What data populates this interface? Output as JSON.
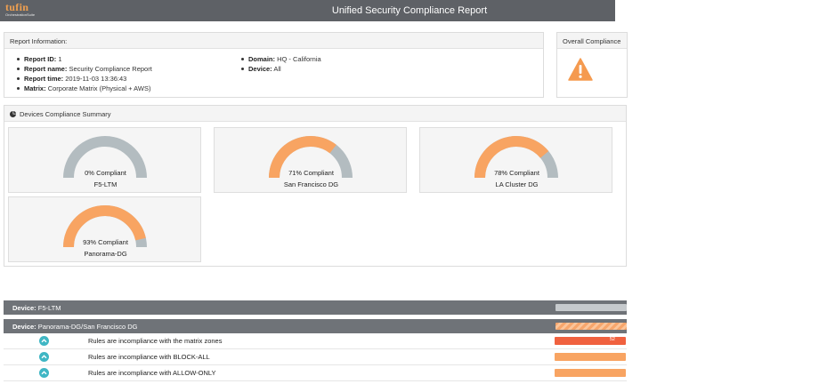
{
  "header": {
    "logo_text": "tufin",
    "logo_subtext": "OrchestrationSuite",
    "title": "Unified Security Compliance Report"
  },
  "report_info": {
    "heading": "Report Information:",
    "left": [
      {
        "label": "Report ID:",
        "value": "1"
      },
      {
        "label": "Report name:",
        "value": "Security Compliance Report"
      },
      {
        "label": "Report time:",
        "value": "2019-11-03 13:36:43"
      },
      {
        "label": "Matrix:",
        "value": "Corporate Matrix (Physical + AWS)"
      }
    ],
    "right": [
      {
        "label": "Domain:",
        "value": "HQ - California"
      },
      {
        "label": "Device:",
        "value": "All"
      }
    ]
  },
  "overall": {
    "heading": "Overall Compliance",
    "icon": "warning-icon"
  },
  "summary": {
    "heading": "Devices Compliance Summary",
    "icon": "pie-chart-icon",
    "devices": [
      {
        "percent_label": "0% Compliant",
        "name": "F5-LTM",
        "compliance": 0
      },
      {
        "percent_label": "71% Compliant",
        "name": "San Francisco DG",
        "compliance": 0.71
      },
      {
        "percent_label": "78% Compliant",
        "name": "LA Cluster DG",
        "compliance": 0.78
      },
      {
        "percent_label": "93% Compliant",
        "name": "Panorama-DG",
        "compliance": 0.93
      }
    ]
  },
  "colors": {
    "compliant": "#f8a462",
    "non_compliant": "#b3bcc0",
    "header_bg": "#5e6166",
    "device_bar_bg": "#6f7378",
    "rule_red": "#f0613f",
    "rule_orange": "#f8a462",
    "chevron": "#3fb6c4"
  },
  "device_sections": [
    {
      "label": "Device:",
      "name": "F5-LTM"
    },
    {
      "label": "Device:",
      "name": "Panorama-DG/San Francisco DG"
    }
  ],
  "rules": [
    {
      "text": "Rules are incompliance with the matrix zones",
      "bar_label": "52"
    },
    {
      "text": "Rules are incompliance with BLOCK-ALL",
      "bar_label": ""
    },
    {
      "text": "Rules are incompliance with ALLOW-ONLY",
      "bar_label": ""
    }
  ]
}
